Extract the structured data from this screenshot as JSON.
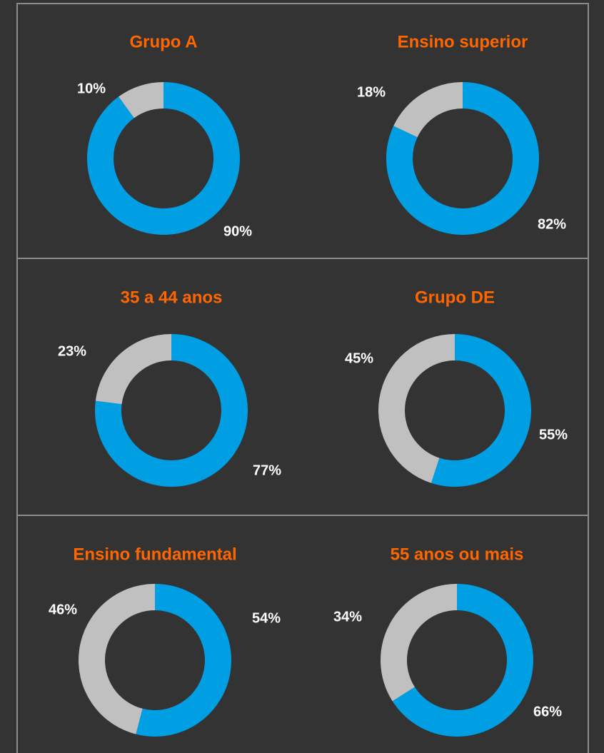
{
  "chart_data": [
    {
      "type": "donut",
      "title": "Grupo A",
      "values": [
        90,
        10
      ],
      "value_labels": [
        "90%",
        "10%"
      ],
      "colors": [
        "#009fe3",
        "#c0c0c0"
      ]
    },
    {
      "type": "donut",
      "title": "Ensino superior",
      "values": [
        82,
        18
      ],
      "value_labels": [
        "82%",
        "18%"
      ],
      "colors": [
        "#009fe3",
        "#c0c0c0"
      ]
    },
    {
      "type": "donut",
      "title": "35 a 44 anos",
      "values": [
        77,
        23
      ],
      "value_labels": [
        "77%",
        "23%"
      ],
      "colors": [
        "#009fe3",
        "#c0c0c0"
      ]
    },
    {
      "type": "donut",
      "title": "Grupo DE",
      "values": [
        55,
        45
      ],
      "value_labels": [
        "55%",
        "45%"
      ],
      "colors": [
        "#009fe3",
        "#c0c0c0"
      ]
    },
    {
      "type": "donut",
      "title": "Ensino fundamental",
      "values": [
        54,
        46
      ],
      "value_labels": [
        "54%",
        "46%"
      ],
      "colors": [
        "#009fe3",
        "#c0c0c0"
      ]
    },
    {
      "type": "donut",
      "title": "55 anos ou mais",
      "values": [
        66,
        34
      ],
      "value_labels": [
        "66%",
        "34%"
      ],
      "colors": [
        "#009fe3",
        "#c0c0c0"
      ]
    }
  ]
}
